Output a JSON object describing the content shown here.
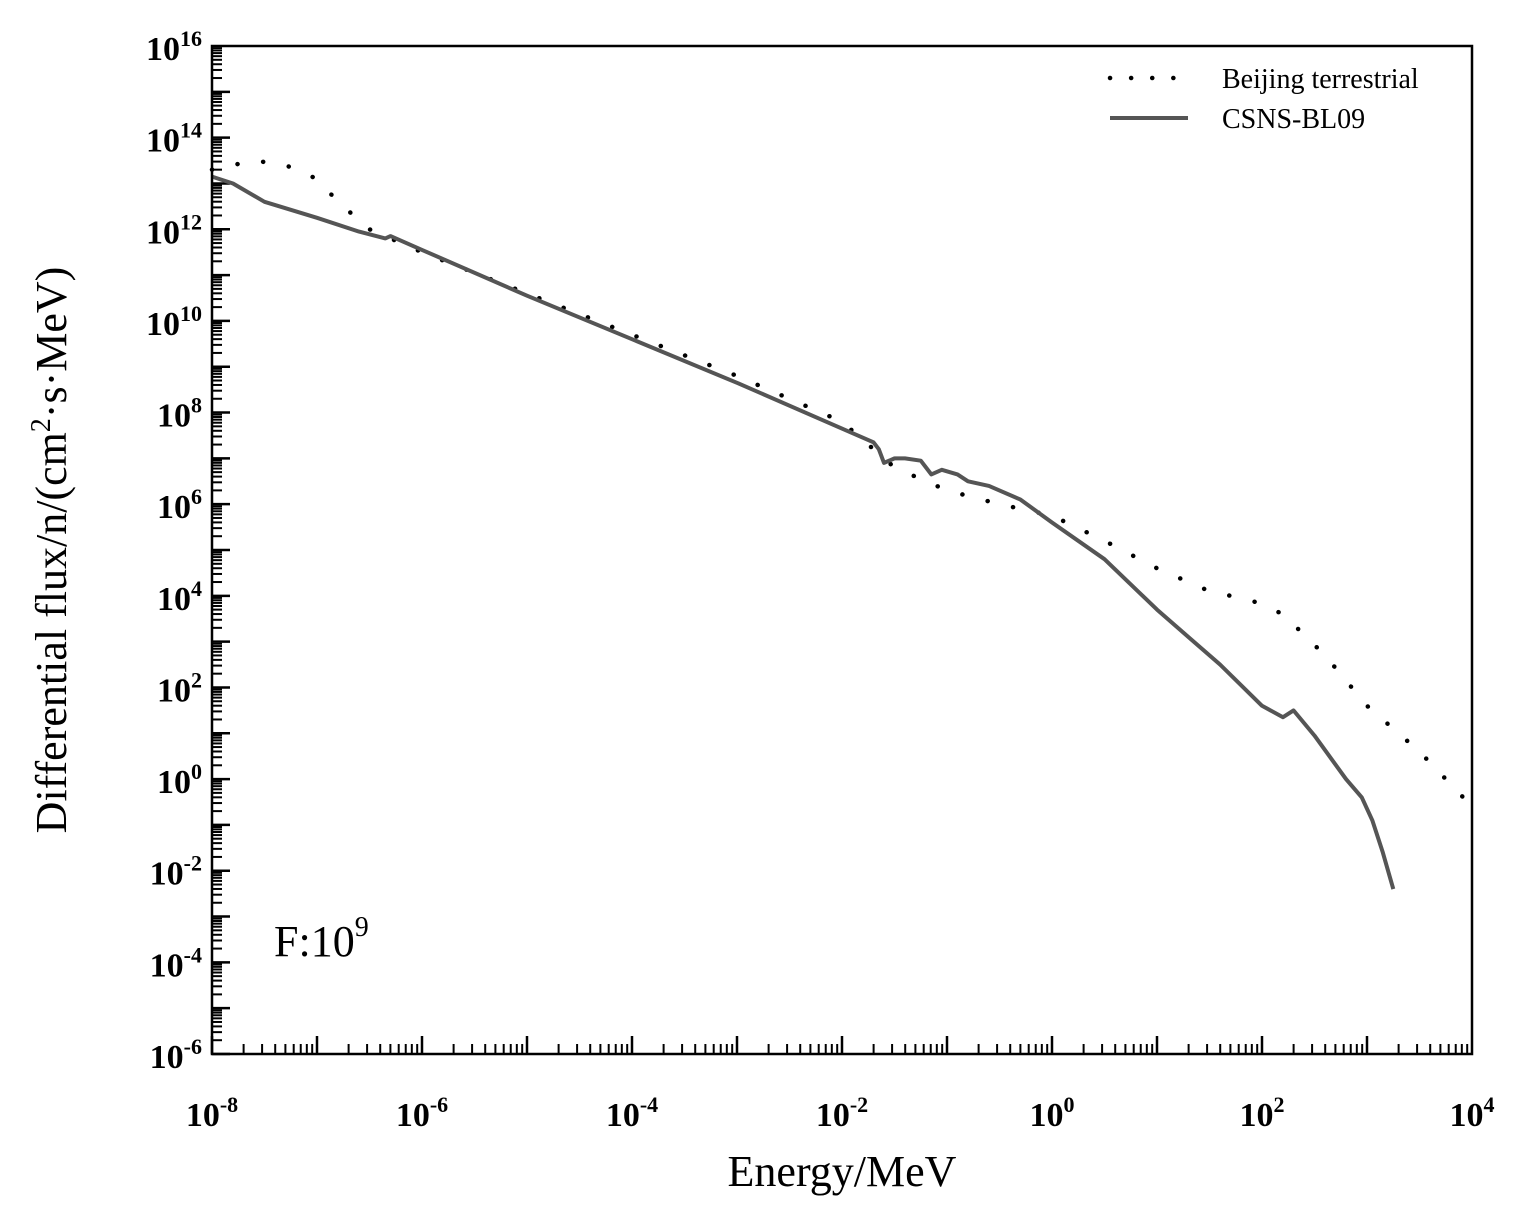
{
  "chart_data": {
    "type": "line",
    "title": "",
    "xlabel": "Energy/MeV",
    "ylabel": {
      "text": "Differential flux/n/(cm",
      "sup": "2",
      "rest": "·s·MeV)"
    },
    "xscale": "log",
    "yscale": "log",
    "xlim_exp": [
      -8,
      4
    ],
    "ylim_exp": [
      -6,
      16
    ],
    "x_major_ticks": [
      -8,
      -6,
      -4,
      -2,
      0,
      2,
      4
    ],
    "y_major_ticks": [
      -6,
      -4,
      -2,
      0,
      2,
      4,
      6,
      8,
      10,
      12,
      14,
      16
    ],
    "tick_base": "10",
    "x_tick_labels": [
      "-8",
      "-6",
      "-4",
      "-2",
      "0",
      "2",
      "4"
    ],
    "y_tick_labels": [
      "-6",
      "-4",
      "-2",
      "0",
      "2",
      "4",
      "6",
      "8",
      "10",
      "12",
      "14",
      "16"
    ],
    "legend_position": "top-right",
    "annotation": {
      "text": "F:10",
      "sup": "9",
      "position": "bottom-left"
    },
    "series": [
      {
        "name": "Beijing terrestrial",
        "style": "dotted",
        "color": "#000000",
        "points_log10": [
          [
            -8.0,
            13.3
          ],
          [
            -7.6,
            13.5
          ],
          [
            -7.3,
            13.4
          ],
          [
            -7.0,
            13.1
          ],
          [
            -6.8,
            12.6
          ],
          [
            -6.5,
            12.0
          ],
          [
            -6.0,
            11.5
          ],
          [
            -5.0,
            10.6
          ],
          [
            -4.0,
            9.7
          ],
          [
            -3.0,
            8.8
          ],
          [
            -2.0,
            7.8
          ],
          [
            -1.5,
            6.8
          ],
          [
            -1.0,
            6.3
          ],
          [
            -0.5,
            6.0
          ],
          [
            0.0,
            5.75
          ],
          [
            0.5,
            5.2
          ],
          [
            1.0,
            4.6
          ],
          [
            1.5,
            4.1
          ],
          [
            1.9,
            3.9
          ],
          [
            2.2,
            3.6
          ],
          [
            2.6,
            2.7
          ],
          [
            3.0,
            1.6
          ],
          [
            3.5,
            0.6
          ],
          [
            4.0,
            -0.6
          ]
        ]
      },
      {
        "name": "CSNS-BL09",
        "style": "solid",
        "color": "#555555",
        "points_log10": [
          [
            -8.0,
            13.15
          ],
          [
            -7.8,
            13.0
          ],
          [
            -7.5,
            12.6
          ],
          [
            -7.0,
            12.25
          ],
          [
            -6.6,
            11.95
          ],
          [
            -6.35,
            11.8
          ],
          [
            -6.3,
            11.85
          ],
          [
            -6.0,
            11.55
          ],
          [
            -5.0,
            10.55
          ],
          [
            -4.0,
            9.6
          ],
          [
            -3.0,
            8.65
          ],
          [
            -2.2,
            7.85
          ],
          [
            -1.7,
            7.35
          ],
          [
            -1.65,
            7.2
          ],
          [
            -1.6,
            6.9
          ],
          [
            -1.5,
            7.0
          ],
          [
            -1.4,
            7.0
          ],
          [
            -1.25,
            6.95
          ],
          [
            -1.15,
            6.65
          ],
          [
            -1.05,
            6.75
          ],
          [
            -0.9,
            6.65
          ],
          [
            -0.8,
            6.5
          ],
          [
            -0.6,
            6.4
          ],
          [
            -0.3,
            6.1
          ],
          [
            0.0,
            5.6
          ],
          [
            0.5,
            4.8
          ],
          [
            1.0,
            3.7
          ],
          [
            1.3,
            3.1
          ],
          [
            1.6,
            2.5
          ],
          [
            2.0,
            1.6
          ],
          [
            2.2,
            1.35
          ],
          [
            2.3,
            1.5
          ],
          [
            2.5,
            0.95
          ],
          [
            2.8,
            0.0
          ],
          [
            2.95,
            -0.4
          ],
          [
            3.05,
            -0.9
          ],
          [
            3.15,
            -1.6
          ],
          [
            3.25,
            -2.4
          ]
        ]
      }
    ]
  }
}
